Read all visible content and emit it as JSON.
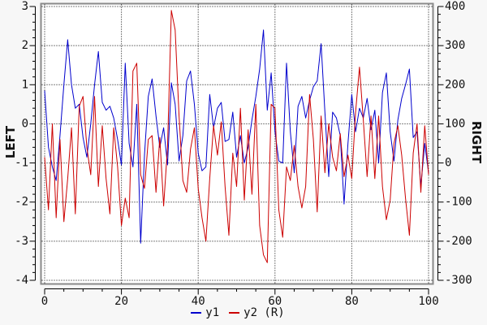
{
  "window": {
    "background": "#f7f7f7"
  },
  "chart_data": {
    "type": "line",
    "title": "",
    "x_axis": {
      "label": "",
      "min": 0,
      "max": 100,
      "major_ticks": [
        0,
        20,
        40,
        60,
        80,
        100
      ],
      "minor_step": 5
    },
    "left_axis": {
      "label": "LEFT",
      "min": -4,
      "max": 3,
      "major_ticks": [
        3,
        2,
        1,
        0,
        -1,
        -2,
        -3,
        -4
      ],
      "minor_step": 0.2
    },
    "right_axis": {
      "label": "RIGHT",
      "min": -300,
      "max": 400,
      "major_ticks": [
        400,
        300,
        200,
        100,
        0,
        -100,
        -200,
        -300
      ],
      "minor_step": 20
    },
    "grid": {
      "on": true,
      "style": "dotted",
      "color": "#000000"
    },
    "plot": {
      "background": "#ffffff",
      "border_color": "#8a8a8a"
    },
    "legend": {
      "position": "bottom-center",
      "items": [
        {
          "label": "y1",
          "color": "#0000cd"
        },
        {
          "label": "y2 (R)",
          "color": "#cc0000"
        }
      ]
    },
    "x": [
      0,
      1,
      2,
      3,
      4,
      5,
      6,
      7,
      8,
      9,
      10,
      11,
      12,
      13,
      14,
      15,
      16,
      17,
      18,
      19,
      20,
      21,
      22,
      23,
      24,
      25,
      26,
      27,
      28,
      29,
      30,
      31,
      32,
      33,
      34,
      35,
      36,
      37,
      38,
      39,
      40,
      41,
      42,
      43,
      44,
      45,
      46,
      47,
      48,
      49,
      50,
      51,
      52,
      53,
      54,
      55,
      56,
      57,
      58,
      59,
      60,
      61,
      62,
      63,
      64,
      65,
      66,
      67,
      68,
      69,
      70,
      71,
      72,
      73,
      74,
      75,
      76,
      77,
      78,
      79,
      80,
      81,
      82,
      83,
      84,
      85,
      86,
      87,
      88,
      89,
      90,
      91,
      92,
      93,
      94,
      95,
      96,
      97,
      98,
      99,
      100
    ],
    "series": [
      {
        "name": "y1",
        "axis": "left",
        "color": "#0000cd",
        "values": [
          0.85,
          -0.6,
          -1.1,
          -1.45,
          -0.3,
          1.0,
          2.15,
          1.0,
          0.4,
          0.5,
          -0.35,
          -0.85,
          0.0,
          1.0,
          1.85,
          0.55,
          0.35,
          0.45,
          0.15,
          -0.4,
          -1.05,
          1.55,
          -0.5,
          -1.1,
          0.5,
          -3.05,
          -0.8,
          0.7,
          1.15,
          0.2,
          -0.6,
          -0.1,
          -1.05,
          1.05,
          0.5,
          -0.95,
          -0.3,
          1.1,
          1.35,
          0.5,
          -0.75,
          -1.2,
          -1.1,
          0.75,
          -0.1,
          0.4,
          0.55,
          -0.45,
          -0.4,
          0.3,
          -0.85,
          -0.3,
          -1.0,
          -0.6,
          0.1,
          0.7,
          1.4,
          2.4,
          0.35,
          1.3,
          -0.2,
          -0.95,
          -1.0,
          1.55,
          -0.2,
          -1.25,
          0.45,
          0.7,
          0.15,
          0.6,
          0.95,
          1.1,
          2.05,
          0.3,
          -1.35,
          0.3,
          0.15,
          -0.3,
          -2.05,
          -0.5,
          0.75,
          -0.2,
          0.4,
          0.15,
          0.65,
          -0.15,
          0.35,
          -1.0,
          0.8,
          1.3,
          -0.2,
          -0.95,
          0.1,
          0.65,
          1.0,
          1.4,
          -0.35,
          -0.2,
          -1.6,
          -0.5,
          -1.25
        ]
      },
      {
        "name": "y2",
        "axis": "right",
        "color": "#cc0000",
        "values": [
          15,
          -120,
          100,
          -140,
          60,
          -150,
          -40,
          90,
          -130,
          145,
          170,
          40,
          -30,
          170,
          -60,
          95,
          -40,
          -130,
          90,
          -10,
          -160,
          -90,
          -140,
          235,
          255,
          -30,
          -65,
          60,
          70,
          -75,
          65,
          -110,
          40,
          390,
          340,
          120,
          -45,
          -75,
          35,
          90,
          -65,
          -140,
          -200,
          -40,
          95,
          20,
          105,
          -60,
          -185,
          25,
          -60,
          140,
          -95,
          85,
          -80,
          150,
          -160,
          -235,
          -255,
          150,
          140,
          -120,
          -190,
          -10,
          -45,
          45,
          -60,
          -115,
          -60,
          175,
          60,
          -125,
          120,
          -25,
          100,
          15,
          -20,
          75,
          -35,
          20,
          -40,
          130,
          245,
          110,
          -35,
          120,
          -40,
          120,
          -60,
          -145,
          -95,
          50,
          95,
          20,
          -90,
          -185,
          25,
          100,
          -75,
          95,
          -30
        ]
      }
    ]
  }
}
